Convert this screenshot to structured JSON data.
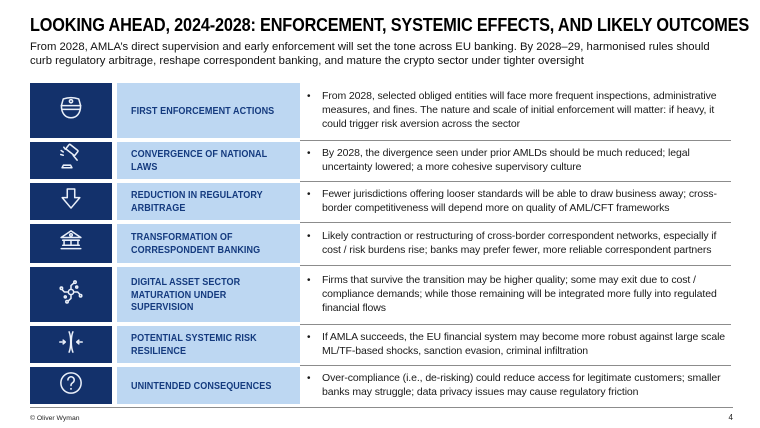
{
  "slide": {
    "title": "LOOKING AHEAD, 2024-2028: ENFORCEMENT, SYSTEMIC EFFECTS, AND LIKELY OUTCOMES",
    "subtitle": "From 2028, AMLA’s direct supervision and early enforcement will set the tone across EU banking. By 2028–29, harmonised rules should curb regulatory arbitrage, reshape correspondent banking, and mature the crypto sector under tighter oversight",
    "bullet_glyph": "•",
    "footer": {
      "copyright": "© Oliver Wyman",
      "page_number": "4"
    }
  },
  "colors": {
    "navy": "#13316B",
    "light_blue": "#BDD7F2",
    "label_text": "#143A7E",
    "body_text": "#1A1A1A",
    "separator": "#8C8C8C"
  },
  "rows": [
    {
      "icon": "police-cap-icon",
      "label": "FIRST ENFORCEMENT ACTIONS",
      "bullet": "From 2028, selected obliged entities will face more frequent inspections, administrative measures, and fines. The nature and scale of initial enforcement will matter: if heavy, it could trigger risk aversion across the sector"
    },
    {
      "icon": "gavel-icon",
      "label": "CONVERGENCE OF NATIONAL LAWS",
      "bullet": "By 2028, the divergence seen under prior AMLDs should be much reduced; legal uncertainty lowered; a more cohesive supervisory culture"
    },
    {
      "icon": "down-arrow-icon",
      "label": "REDUCTION IN REGULATORY ARBITRAGE",
      "bullet": "Fewer jurisdictions offering looser standards will be able to draw business away; cross-border competitiveness will depend more on quality of AML/CFT frameworks"
    },
    {
      "icon": "bank-icon",
      "label": "TRANSFORMATION OF CORRESPONDENT BANKING",
      "bullet": "Likely contraction or restructuring of cross-border correspondent networks, especially if cost / risk burdens rise; banks may prefer fewer, more reliable correspondent partners"
    },
    {
      "icon": "circuit-icon",
      "label": "DIGITAL ASSET SECTOR MATURATION UNDER SUPERVISION",
      "bullet": "Firms that survive the transition may be higher quality; some may exit due to cost / compliance demands; while those remaining will be integrated more fully into regulated financial flows"
    },
    {
      "icon": "converging-arrows-icon",
      "label": "POTENTIAL SYSTEMIC RISK RESILIENCE",
      "bullet": "If AMLA succeeds, the EU financial system may become more robust against large scale ML/TF-based shocks, sanction evasion, criminal infiltration"
    },
    {
      "icon": "question-mark-icon",
      "label": "UNINTENDED CONSEQUENCES",
      "bullet": "Over-compliance (i.e., de-risking) could reduce access for legitimate customers; smaller banks may struggle; data privacy issues may cause regulatory friction"
    }
  ]
}
